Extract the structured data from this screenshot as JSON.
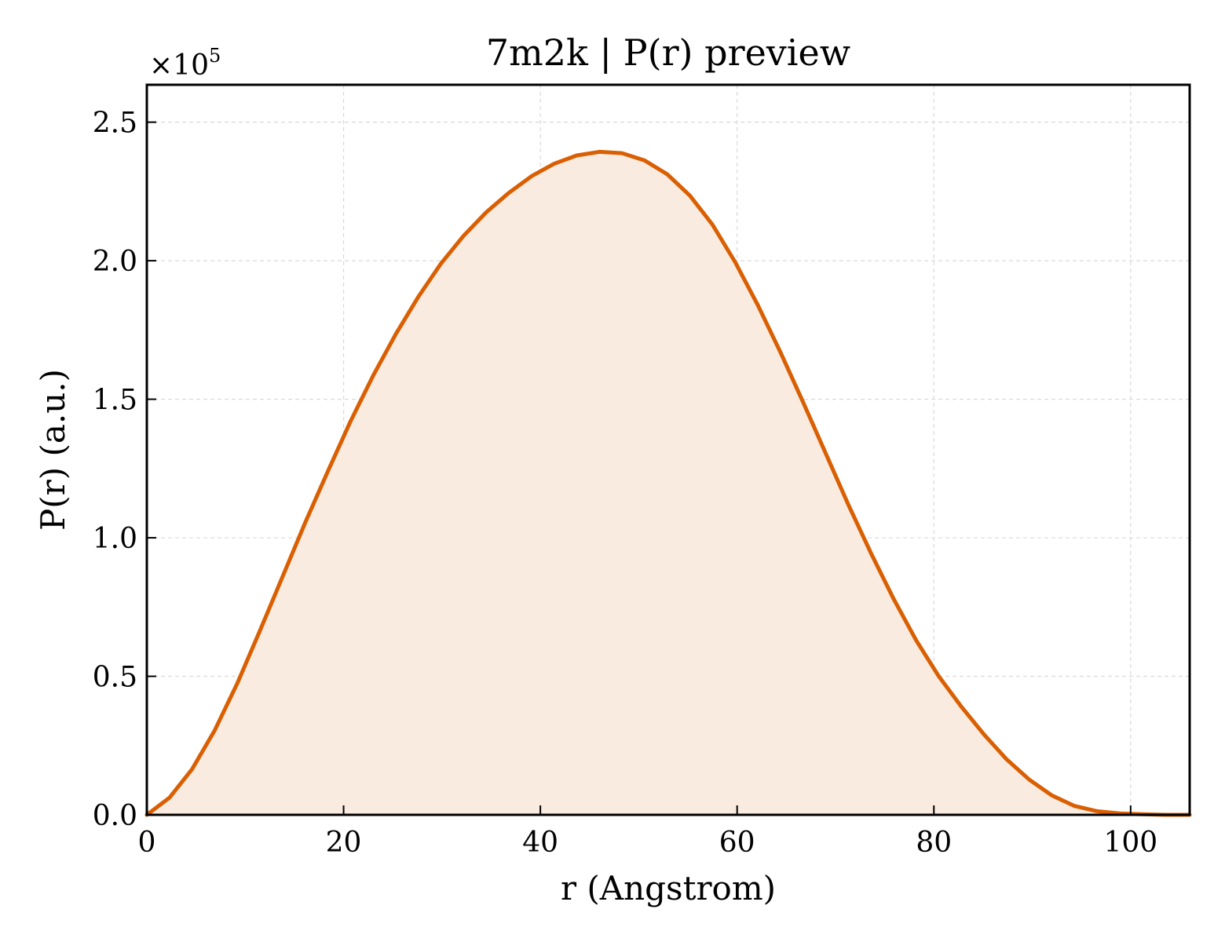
{
  "chart_data": {
    "type": "area",
    "title": "7m2k | P(r) preview",
    "xlabel": "r (Angstrom)",
    "ylabel": "P(r) (a.u.)",
    "y_multiplier": "×10",
    "y_multiplier_exp": "5",
    "xlim": [
      0,
      106
    ],
    "ylim": [
      0,
      2.635
    ],
    "xticks": [
      0,
      20,
      40,
      60,
      80,
      100
    ],
    "xtick_labels": [
      "0",
      "20",
      "40",
      "60",
      "80",
      "100"
    ],
    "yticks": [
      0,
      0.5,
      1.0,
      1.5,
      2.0,
      2.5
    ],
    "ytick_labels": [
      "0.0",
      "0.5",
      "1.0",
      "1.5",
      "2.0",
      "2.5"
    ],
    "grid": true,
    "colors": {
      "line": "#d95f02",
      "fill": "#f9ebe0"
    },
    "series": [
      {
        "x": [
          0,
          2.3,
          4.6,
          6.9,
          9.2,
          11.5,
          13.8,
          16.1,
          18.4,
          20.7,
          23.0,
          25.3,
          27.6,
          29.9,
          32.2,
          34.5,
          36.8,
          39.1,
          41.4,
          43.7,
          46.0,
          48.3,
          50.6,
          52.9,
          55.2,
          57.5,
          59.8,
          62.1,
          64.4,
          66.7,
          69.0,
          71.3,
          73.6,
          75.9,
          78.2,
          80.5,
          82.8,
          85.1,
          87.4,
          89.7,
          92.0,
          94.3,
          96.6,
          98.9,
          101.2,
          103.5,
          106.0
        ],
        "y": [
          0.0,
          0.062,
          0.165,
          0.305,
          0.475,
          0.665,
          0.86,
          1.055,
          1.24,
          1.42,
          1.585,
          1.735,
          1.87,
          1.99,
          2.09,
          2.175,
          2.245,
          2.305,
          2.35,
          2.38,
          2.393,
          2.388,
          2.362,
          2.312,
          2.235,
          2.13,
          1.995,
          1.84,
          1.67,
          1.49,
          1.305,
          1.12,
          0.945,
          0.78,
          0.63,
          0.5,
          0.39,
          0.29,
          0.2,
          0.127,
          0.07,
          0.032,
          0.013,
          0.005,
          0.002,
          0.0,
          0.0
        ]
      }
    ]
  }
}
